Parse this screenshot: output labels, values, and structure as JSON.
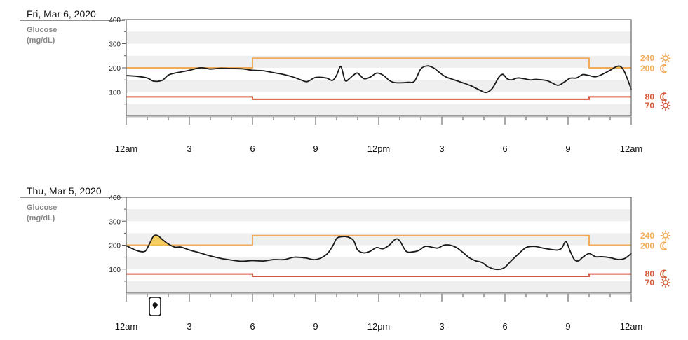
{
  "colors": {
    "high_threshold": "#f0ac5a",
    "low_threshold": "#d4593c",
    "glucose_line": "#1a1a1a",
    "high_fill": "#f5c844",
    "band_gray": "#efefef",
    "frame": "#666666"
  },
  "icons": {
    "day": "sun-icon",
    "night": "moon-icon",
    "event": "food-marker-icon"
  },
  "chart_data": [
    {
      "type": "line",
      "title": "Fri, Mar 6, 2020",
      "ylabel_line1": "Glucose",
      "ylabel_line2": "(mg/dL)",
      "ylim": [
        0,
        400
      ],
      "yticks": [
        "400",
        "300",
        "200",
        "100"
      ],
      "xlim_hours": [
        0,
        24
      ],
      "xtick_labels": [
        "12am",
        "3",
        "6",
        "9",
        "12pm",
        "3",
        "6",
        "9",
        "12am"
      ],
      "thresholds": {
        "high_day": "240",
        "high_night": "200",
        "low_night": "80",
        "low_day": "70"
      },
      "high_threshold_steps": [
        [
          0,
          200
        ],
        [
          6,
          200
        ],
        [
          6,
          240
        ],
        [
          22,
          240
        ],
        [
          22,
          200
        ],
        [
          24,
          200
        ]
      ],
      "low_threshold_steps": [
        [
          0,
          80
        ],
        [
          6,
          80
        ],
        [
          6,
          70
        ],
        [
          22,
          70
        ],
        [
          22,
          80
        ],
        [
          24,
          80
        ]
      ],
      "series": [
        {
          "x": [
            0,
            0.5,
            1,
            1.3,
            1.7,
            2,
            2.3,
            2.6,
            3,
            3.5,
            3.8,
            4,
            4.5,
            5,
            5.5,
            6,
            6.5,
            7,
            7.5,
            8,
            8.3,
            8.6,
            9,
            9.5,
            9.8,
            10,
            10.2,
            10.4,
            10.6,
            10.8,
            11,
            11.3,
            11.6,
            11.9,
            12.2,
            12.5,
            12.7,
            13,
            13.4,
            13.7,
            14,
            14.3,
            14.6,
            14.9,
            15.2,
            15.6,
            16,
            16.4,
            16.8,
            17.1,
            17.4,
            17.7,
            17.9,
            18.1,
            18.3,
            18.6,
            18.9,
            19.2,
            19.5,
            20,
            20.5,
            20.8,
            21.1,
            21.4,
            21.7,
            22,
            22.3,
            22.6,
            23,
            23.3,
            23.5,
            23.7,
            24
          ],
          "y": [
            168,
            165,
            158,
            145,
            148,
            170,
            178,
            183,
            190,
            200,
            198,
            195,
            198,
            197,
            196,
            190,
            188,
            180,
            172,
            160,
            150,
            143,
            160,
            158,
            148,
            170,
            205,
            148,
            155,
            170,
            178,
            155,
            162,
            178,
            170,
            148,
            140,
            138,
            140,
            145,
            195,
            208,
            200,
            180,
            162,
            150,
            138,
            125,
            108,
            98,
            115,
            160,
            173,
            155,
            150,
            158,
            155,
            150,
            152,
            147,
            128,
            140,
            157,
            158,
            172,
            168,
            163,
            172,
            190,
            205,
            205,
            180,
            112
          ]
        }
      ],
      "events": []
    },
    {
      "type": "line",
      "title": "Thu, Mar 5, 2020",
      "ylabel_line1": "Glucose",
      "ylabel_line2": "(mg/dL)",
      "ylim": [
        0,
        400
      ],
      "yticks": [
        "400",
        "300",
        "200",
        "100"
      ],
      "xlim_hours": [
        0,
        24
      ],
      "xtick_labels": [
        "12am",
        "3",
        "6",
        "9",
        "12pm",
        "3",
        "6",
        "9",
        "12am"
      ],
      "thresholds": {
        "high_day": "240",
        "high_night": "200",
        "low_night": "80",
        "low_day": "70"
      },
      "high_threshold_steps": [
        [
          0,
          200
        ],
        [
          6,
          200
        ],
        [
          6,
          240
        ],
        [
          22,
          240
        ],
        [
          22,
          200
        ],
        [
          24,
          200
        ]
      ],
      "low_threshold_steps": [
        [
          0,
          80
        ],
        [
          6,
          80
        ],
        [
          6,
          70
        ],
        [
          22,
          70
        ],
        [
          22,
          80
        ],
        [
          24,
          80
        ]
      ],
      "series": [
        {
          "x": [
            0,
            0.3,
            0.6,
            0.9,
            1.1,
            1.3,
            1.5,
            1.7,
            2,
            2.3,
            2.6,
            3,
            3.5,
            4,
            4.5,
            5,
            5.5,
            6,
            6.5,
            7,
            7.5,
            8,
            8.5,
            9,
            9.5,
            9.8,
            10,
            10.2,
            10.5,
            10.8,
            11,
            11.3,
            11.6,
            11.9,
            12.2,
            12.5,
            12.8,
            13,
            13.3,
            13.6,
            13.9,
            14.2,
            14.5,
            14.8,
            15.1,
            15.4,
            15.7,
            16,
            16.3,
            16.6,
            16.9,
            17.2,
            17.5,
            17.8,
            18,
            18.3,
            18.6,
            19,
            19.4,
            19.8,
            20.2,
            20.5,
            20.7,
            20.9,
            21.1,
            21.3,
            21.5,
            21.7,
            22,
            22.3,
            22.6,
            23,
            23.4,
            23.7,
            24
          ],
          "y": [
            198,
            185,
            175,
            175,
            205,
            238,
            240,
            225,
            205,
            192,
            192,
            180,
            168,
            155,
            145,
            138,
            133,
            136,
            134,
            140,
            140,
            150,
            147,
            140,
            160,
            195,
            228,
            235,
            235,
            220,
            180,
            168,
            175,
            190,
            185,
            200,
            225,
            218,
            175,
            172,
            178,
            195,
            192,
            188,
            200,
            200,
            190,
            170,
            148,
            135,
            128,
            110,
            100,
            100,
            108,
            135,
            160,
            190,
            195,
            188,
            182,
            180,
            188,
            215,
            175,
            140,
            135,
            150,
            165,
            152,
            152,
            148,
            140,
            145,
            165
          ]
        }
      ],
      "events": [
        {
          "hour": 1.5,
          "type": "food"
        }
      ]
    }
  ]
}
